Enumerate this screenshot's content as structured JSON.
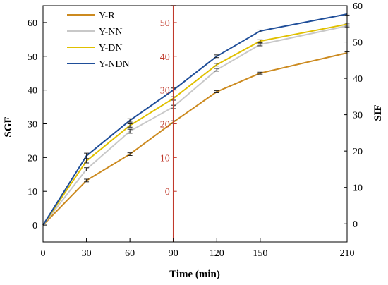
{
  "chart_data": {
    "type": "line",
    "x": [
      0,
      30,
      60,
      90,
      120,
      150,
      210
    ],
    "xlim": [
      0,
      210
    ],
    "xticks": [
      0,
      30,
      60,
      90,
      120,
      150,
      210
    ],
    "xlabel": "Time (min)",
    "left_axis": {
      "label": "SGF",
      "ylim": [
        -5,
        65
      ],
      "ticks": [
        0,
        10,
        20,
        30,
        40,
        50,
        60
      ]
    },
    "right_axis": {
      "label": "SIF",
      "ylim": [
        -5,
        60
      ],
      "ticks": [
        0,
        10,
        20,
        30,
        40,
        50,
        60
      ]
    },
    "middle_axis": {
      "x": 90,
      "color": "#c0392b",
      "ticks": [
        0,
        10,
        20,
        30,
        40,
        50
      ],
      "offset": 10
    },
    "legend_position": "top-left",
    "series": [
      {
        "name": "Y-R",
        "color": "#cc8a1f",
        "values": [
          0,
          13.2,
          21.0,
          30.5,
          39.5,
          45.0,
          51.0
        ],
        "errors": [
          0.2,
          0.4,
          0.4,
          0.4,
          0.3,
          0.3,
          0.3
        ]
      },
      {
        "name": "Y-NN",
        "color": "#c8c8c8",
        "values": [
          0,
          16.5,
          27.8,
          35.0,
          46.0,
          53.5,
          59.0
        ],
        "errors": [
          0.2,
          0.5,
          0.6,
          0.5,
          0.4,
          0.4,
          0.3
        ]
      },
      {
        "name": "Y-DN",
        "color": "#e0c000",
        "values": [
          0,
          19.0,
          29.5,
          37.5,
          47.5,
          54.5,
          59.5
        ],
        "errors": [
          0.2,
          0.6,
          0.5,
          0.5,
          0.4,
          0.4,
          0.3
        ]
      },
      {
        "name": "Y-NDN",
        "color": "#1f4e99",
        "values": [
          0,
          20.5,
          31.0,
          40.0,
          50.0,
          57.5,
          62.5
        ],
        "errors": [
          0.2,
          0.8,
          0.5,
          0.6,
          0.4,
          0.3,
          0.3
        ]
      }
    ]
  }
}
